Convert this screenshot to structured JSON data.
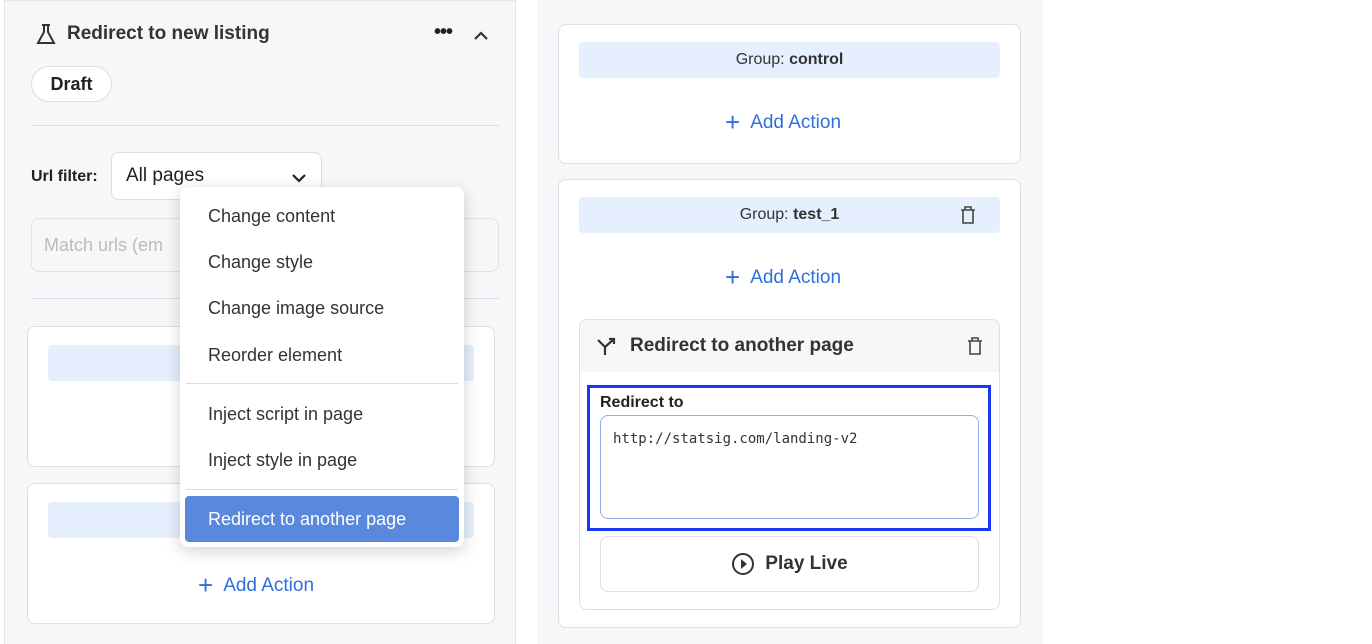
{
  "left": {
    "title": "Redirect to new listing",
    "status": "Draft",
    "url_filter_label": "Url filter:",
    "url_filter_value": "All pages",
    "match_placeholder": "Match urls (em",
    "add_action": "Add Action"
  },
  "menu": {
    "items": [
      "Change content",
      "Change style",
      "Change image source",
      "Reorder element",
      "Inject script in page",
      "Inject style in page",
      "Redirect to another page"
    ]
  },
  "right": {
    "groups": [
      {
        "prefix": "Group: ",
        "name": "control"
      },
      {
        "prefix": "Group: ",
        "name": "test_1"
      }
    ],
    "add_action": "Add Action",
    "action_title": "Redirect to another page",
    "redirect_label": "Redirect to",
    "redirect_value": "http://statsig.com/landing-v2",
    "play_live": "Play Live"
  },
  "colors": {
    "accent": "#2f6fdb",
    "menu_selected": "#5a88dc",
    "highlight_border": "#1a35f5",
    "group_bg": "#e5effd"
  }
}
